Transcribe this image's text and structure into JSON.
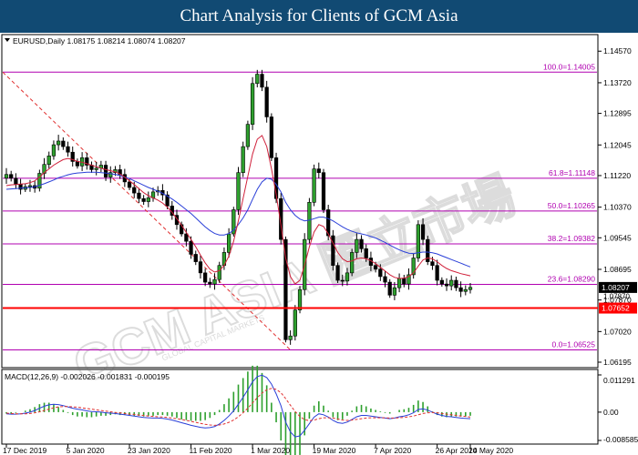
{
  "banner": {
    "title": "Chart Analysis for Clients of GCM Asia"
  },
  "main_panel": {
    "header": "EURUSD,Daily  1.08175 1.08214 1.08074 1.08207",
    "menu_icon": "triangle-down-icon",
    "current_price": "1.08207",
    "support_price": "1.07652",
    "extra_axis_label": "1.07870"
  },
  "macd_panel": {
    "header": "MACD(12,26,9) -0.002026 -0.001831 -0.000195",
    "ticks": [
      "0.011291",
      "0.00",
      "-0.008585"
    ]
  },
  "watermark": {
    "brand": "GCM ASIA 匯立市場",
    "sub": "GLOBAL CAPITAL MARKETS"
  },
  "colors": {
    "banner": "#114a73",
    "fib": "#b000b0",
    "support": "#ff0000",
    "ma_short": "#d0203a",
    "ma_long": "#2a3fd8",
    "bull": "#2ea02e"
  },
  "chart_data": {
    "type": "candlestick",
    "symbol": "EURUSD",
    "timeframe": "Daily",
    "ylim": [
      1.06195,
      1.1487
    ],
    "y_ticks": [
      "1.14570",
      "1.13720",
      "1.12895",
      "1.12045",
      "1.11220",
      "1.10370",
      "1.09545",
      "1.08695",
      "1.07870",
      "1.07020",
      "1.06195"
    ],
    "x_ticks": [
      "17 Dec 2019",
      "5 Jan 2020",
      "23 Jan 2020",
      "11 Feb 2020",
      "1 Mar 2020",
      "19 Mar 2020",
      "7 Apr 2020",
      "26 Apr 2020",
      "14 May 2020"
    ],
    "fib_levels": [
      {
        "label": "100.0=1.14005",
        "value": 1.14005
      },
      {
        "label": "61.8=1.11148",
        "value": 1.11148
      },
      {
        "label": "50.0=1.10265",
        "value": 1.10265
      },
      {
        "label": "38.2=1.09382",
        "value": 1.09382
      },
      {
        "label": "23.6=1.08290",
        "value": 1.0829
      },
      {
        "label": "0.0=1.06525",
        "value": 1.06525
      }
    ],
    "support_level": 1.07652,
    "last_price": 1.08207,
    "close_series": [
      1.1125,
      1.1115,
      1.1098,
      1.1085,
      1.1092,
      1.1095,
      1.1088,
      1.1128,
      1.1152,
      1.1175,
      1.1205,
      1.1215,
      1.12,
      1.1185,
      1.116,
      1.1148,
      1.117,
      1.115,
      1.1138,
      1.1142,
      1.115,
      1.1118,
      1.113,
      1.1138,
      1.1125,
      1.1105,
      1.109,
      1.1075,
      1.106,
      1.1052,
      1.1062,
      1.1078,
      1.1082,
      1.107,
      1.104,
      1.1015,
      1.099,
      1.0965,
      1.0945,
      1.091,
      1.089,
      1.086,
      1.0835,
      1.083,
      1.0842,
      1.088,
      1.0915,
      1.0965,
      1.103,
      1.113,
      1.12,
      1.126,
      1.137,
      1.1395,
      1.136,
      1.128,
      1.117,
      1.106,
      1.095,
      1.068,
      1.069,
      1.076,
      1.0815,
      1.095,
      1.105,
      1.114,
      1.113,
      1.103,
      1.096,
      1.088,
      1.084,
      1.0838,
      1.086,
      1.0915,
      1.095,
      1.0925,
      1.09,
      1.088,
      1.087,
      1.085,
      1.0835,
      1.08,
      1.082,
      1.0845,
      1.083,
      1.0855,
      1.09,
      1.099,
      1.095,
      1.089,
      1.088,
      1.084,
      1.083,
      1.0825,
      1.084,
      1.082,
      1.081,
      1.0815,
      1.0821
    ],
    "ma_short_series": [
      1.1095,
      1.1097,
      1.1098,
      1.1099,
      1.11,
      1.1103,
      1.1108,
      1.1118,
      1.113,
      1.114,
      1.115,
      1.1158,
      1.1165,
      1.1168,
      1.1165,
      1.116,
      1.1158,
      1.1154,
      1.115,
      1.1146,
      1.1142,
      1.1138,
      1.1135,
      1.1132,
      1.1126,
      1.1118,
      1.1108,
      1.1098,
      1.1087,
      1.1076,
      1.1068,
      1.1062,
      1.1056,
      1.1048,
      1.1037,
      1.1023,
      1.1006,
      1.0988,
      1.0969,
      1.095,
      1.093,
      1.0908,
      1.0887,
      1.087,
      1.0862,
      1.0866,
      1.088,
      1.0905,
      1.0945,
      1.1,
      1.106,
      1.112,
      1.118,
      1.122,
      1.123,
      1.12,
      1.114,
      1.107,
      1.099,
      1.09,
      1.085,
      1.083,
      1.084,
      1.088,
      1.093,
      1.097,
      1.099,
      1.0985,
      1.0965,
      1.094,
      1.0915,
      1.0898,
      1.089,
      1.0892,
      1.0898,
      1.09,
      1.0898,
      1.0893,
      1.0885,
      1.0875,
      1.0865,
      1.0855,
      1.0848,
      1.0845,
      1.0846,
      1.085,
      1.086,
      1.0878,
      1.0895,
      1.09,
      1.0898,
      1.089,
      1.088,
      1.0872,
      1.0866,
      1.0862,
      1.0858,
      1.0855,
      1.0852
    ],
    "ma_long_series": [
      1.1085,
      1.1086,
      1.1087,
      1.1088,
      1.1089,
      1.109,
      1.1092,
      1.1096,
      1.11,
      1.1105,
      1.111,
      1.1116,
      1.112,
      1.1124,
      1.1127,
      1.1129,
      1.113,
      1.1131,
      1.1131,
      1.1131,
      1.113,
      1.1129,
      1.1127,
      1.1125,
      1.1122,
      1.1118,
      1.1114,
      1.1108,
      1.1102,
      1.1096,
      1.109,
      1.1085,
      1.108,
      1.1074,
      1.1067,
      1.1059,
      1.105,
      1.104,
      1.103,
      1.102,
      1.1008,
      1.0996,
      1.0984,
      1.0974,
      1.0966,
      1.0962,
      1.0962,
      1.0966,
      1.0975,
      1.099,
      1.1008,
      1.103,
      1.1058,
      1.1085,
      1.1105,
      1.1115,
      1.1112,
      1.1098,
      1.1078,
      1.105,
      1.103,
      1.1015,
      1.1005,
      1.1,
      1.1002,
      1.1006,
      1.101,
      1.101,
      1.1006,
      1.1,
      1.0992,
      1.0984,
      1.0977,
      1.0972,
      1.0968,
      1.0965,
      1.0962,
      1.0958,
      1.0954,
      1.0948,
      1.0942,
      1.0935,
      1.0928,
      1.0922,
      1.0917,
      1.0913,
      1.0912,
      1.0914,
      1.0916,
      1.0916,
      1.0914,
      1.0911,
      1.0906,
      1.0901,
      1.0896,
      1.0891,
      1.0886,
      1.0881,
      1.0876
    ],
    "macd_ylim": [
      -0.008585,
      0.011291
    ],
    "macd_series": [
      -0.0005,
      -0.0006,
      -0.0006,
      -0.0005,
      -0.0003,
      0.0,
      0.0005,
      0.0012,
      0.0018,
      0.0022,
      0.0024,
      0.0023,
      0.002,
      0.0016,
      0.0012,
      0.0009,
      0.0007,
      0.0004,
      0.0002,
      0.0001,
      0.0,
      -0.0002,
      -0.0003,
      -0.0004,
      -0.0006,
      -0.0008,
      -0.001,
      -0.0012,
      -0.0014,
      -0.0016,
      -0.0017,
      -0.0018,
      -0.0018,
      -0.0019,
      -0.0021,
      -0.0024,
      -0.0028,
      -0.0032,
      -0.0036,
      -0.004,
      -0.0043,
      -0.0046,
      -0.0048,
      -0.0047,
      -0.0044,
      -0.0036,
      -0.0025,
      -0.0012,
      0.0004,
      0.0024,
      0.0045,
      0.0068,
      0.0092,
      0.0108,
      0.0112,
      0.0105,
      0.0085,
      0.0055,
      0.002,
      -0.003,
      -0.006,
      -0.0075,
      -0.0072,
      -0.0055,
      -0.0035,
      -0.0015,
      -0.0005,
      -0.0008,
      -0.0015,
      -0.0025,
      -0.0032,
      -0.0034,
      -0.003,
      -0.0022,
      -0.0014,
      -0.001,
      -0.001,
      -0.0012,
      -0.0014,
      -0.0016,
      -0.0018,
      -0.002,
      -0.0018,
      -0.0014,
      -0.0012,
      -0.0008,
      -0.0002,
      0.0008,
      0.001,
      0.0006,
      0.0,
      -0.0006,
      -0.001,
      -0.0013,
      -0.0014,
      -0.0016,
      -0.0018,
      -0.0019,
      -0.002
    ],
    "macd_signal_series": [
      -0.0003,
      -0.0004,
      -0.0005,
      -0.0005,
      -0.0005,
      -0.0004,
      -0.0002,
      0.0001,
      0.0005,
      0.0009,
      0.0013,
      0.0016,
      0.0017,
      0.0017,
      0.0016,
      0.0015,
      0.0013,
      0.0011,
      0.0009,
      0.0007,
      0.0005,
      0.0003,
      0.0001,
      -0.0001,
      -0.0002,
      -0.0004,
      -0.0006,
      -0.0007,
      -0.0009,
      -0.001,
      -0.0012,
      -0.0013,
      -0.0014,
      -0.0015,
      -0.0016,
      -0.0018,
      -0.002,
      -0.0022,
      -0.0025,
      -0.0028,
      -0.0031,
      -0.0034,
      -0.0037,
      -0.0039,
      -0.004,
      -0.0039,
      -0.0036,
      -0.0031,
      -0.0024,
      -0.0014,
      -0.0002,
      0.0012,
      0.0028,
      0.0044,
      0.0058,
      0.0068,
      0.0072,
      0.0069,
      0.0059,
      0.0041,
      0.0021,
      0.0002,
      -0.0013,
      -0.0023,
      -0.0026,
      -0.0024,
      -0.002,
      -0.0017,
      -0.0017,
      -0.0018,
      -0.0021,
      -0.0024,
      -0.0025,
      -0.0024,
      -0.0022,
      -0.002,
      -0.0018,
      -0.0017,
      -0.0017,
      -0.0017,
      -0.0017,
      -0.0018,
      -0.0018,
      -0.0017,
      -0.0016,
      -0.0014,
      -0.0012,
      -0.0008,
      -0.0004,
      -0.0002,
      -0.0001,
      -0.0002,
      -0.0004,
      -0.0006,
      -0.0008,
      -0.001,
      -0.0012,
      -0.0013,
      -0.0015
    ]
  }
}
